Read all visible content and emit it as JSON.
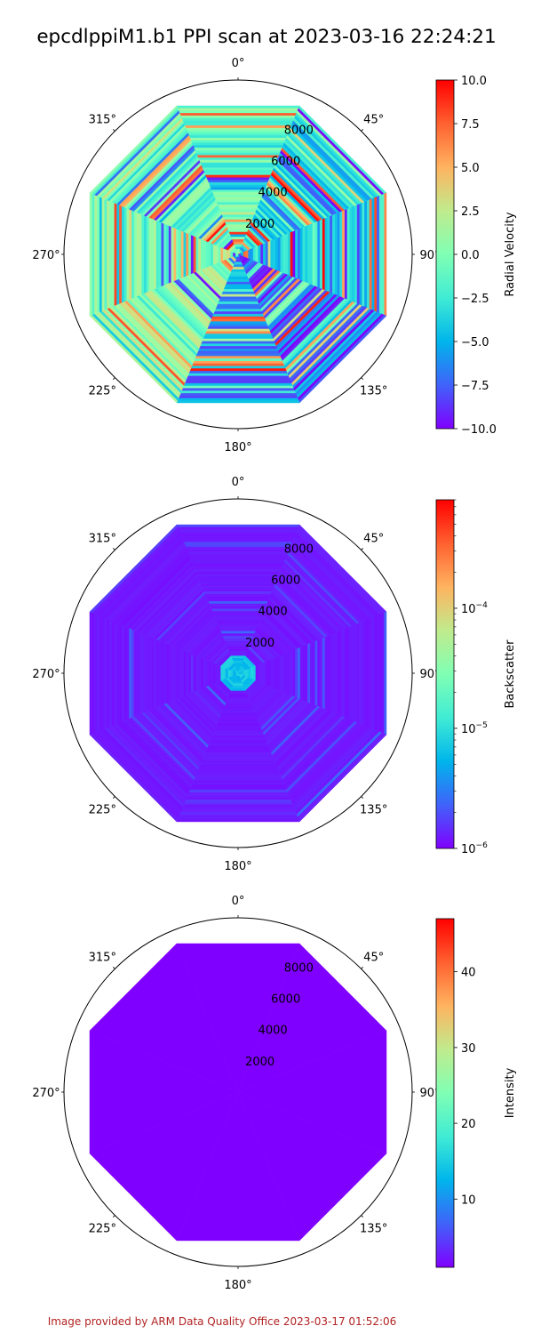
{
  "title": "epcdlppiM1.b1 PPI scan at 2023-03-16 22:24:21",
  "footer": "Image provided by ARM Data Quality Office 2023-03-17 01:52:06",
  "colors": {
    "footer": "#b22222",
    "axis": "#000000"
  },
  "chart_data": [
    {
      "type": "heatmap",
      "projection": "polar",
      "theta_zero": "north",
      "theta_direction": "clockwise",
      "theta_labels": [
        "0°",
        "45°",
        "90°",
        "135°",
        "180°",
        "225°",
        "270°",
        "315°"
      ],
      "r_tick_labels": [
        "2000",
        "4000",
        "6000",
        "8000"
      ],
      "r_ticks": [
        2000,
        4000,
        6000,
        8000
      ],
      "r_max": 10300,
      "data_extent_r": 9500,
      "grid": false,
      "colormap": "rainbow",
      "colorbar": {
        "label": "Radial Velocity",
        "scale": "linear",
        "range": [
          -10.0,
          10.0
        ],
        "ticks": [
          -10.0,
          -7.5,
          -5.0,
          -2.5,
          0.0,
          2.5,
          5.0,
          7.5,
          10.0
        ],
        "tick_labels": [
          "−10.0",
          "−7.5",
          "−5.0",
          "−2.5",
          "0.0",
          "2.5",
          "5.0",
          "7.5",
          "10.0"
        ]
      },
      "pattern": "noisy",
      "quadrant_bias": {
        "north": 0.45,
        "east": 0.3,
        "south": 0.2,
        "west": 0.5,
        "south-east": 0.1,
        "south-west": 0.55
      },
      "noise_fraction": 0.45
    },
    {
      "type": "heatmap",
      "projection": "polar",
      "theta_zero": "north",
      "theta_direction": "clockwise",
      "theta_labels": [
        "0°",
        "45°",
        "90°",
        "135°",
        "180°",
        "225°",
        "270°",
        "315°"
      ],
      "r_tick_labels": [
        "2000",
        "4000",
        "6000",
        "8000"
      ],
      "r_ticks": [
        2000,
        4000,
        6000,
        8000
      ],
      "r_max": 10300,
      "data_extent_r": 9500,
      "grid": false,
      "colormap": "rainbow",
      "colorbar": {
        "label": "Backscatter",
        "scale": "log",
        "range": [
          1e-06,
          0.0008
        ],
        "ticks": [
          1e-06,
          1e-05,
          0.0001
        ],
        "tick_labels": [
          "10",
          "10",
          "10"
        ],
        "tick_exponents": [
          "−6",
          "−5",
          "−4"
        ]
      },
      "pattern": "low-with-core",
      "core_value_fraction": 0.28,
      "background_value_fraction": 0.02
    },
    {
      "type": "heatmap",
      "projection": "polar",
      "theta_zero": "north",
      "theta_direction": "clockwise",
      "theta_labels": [
        "0°",
        "45°",
        "90°",
        "135°",
        "180°",
        "225°",
        "270°",
        "315°"
      ],
      "r_tick_labels": [
        "2000",
        "4000",
        "6000",
        "8000"
      ],
      "r_ticks": [
        2000,
        4000,
        6000,
        8000
      ],
      "r_max": 10300,
      "data_extent_r": 9500,
      "grid": false,
      "colormap": "rainbow",
      "colorbar": {
        "label": "Intensity",
        "scale": "linear",
        "range": [
          1.0,
          47.0
        ],
        "ticks": [
          10,
          20,
          30,
          40
        ],
        "tick_labels": [
          "10",
          "20",
          "30",
          "40"
        ]
      },
      "pattern": "uniform",
      "uniform_value_fraction": 0.0
    }
  ]
}
